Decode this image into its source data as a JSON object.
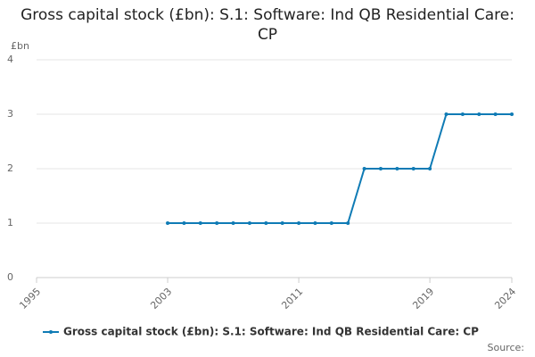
{
  "chart_data": {
    "type": "line",
    "title": "Gross capital stock (£bn): S.1: Software: Ind QB Residential Care: CP",
    "y_label": "£bn",
    "source_label": "Source:",
    "x": [
      2003,
      2004,
      2005,
      2006,
      2007,
      2008,
      2009,
      2010,
      2011,
      2012,
      2013,
      2014,
      2015,
      2016,
      2017,
      2018,
      2019,
      2020,
      2021,
      2022,
      2023,
      2024
    ],
    "series": [
      {
        "name": "Gross capital stock (£bn): S.1: Software: Ind QB Residential Care: CP",
        "color": "#0f7bb5",
        "values": [
          1,
          1,
          1,
          1,
          1,
          1,
          1,
          1,
          1,
          1,
          1,
          1,
          2,
          2,
          2,
          2,
          2,
          3,
          3,
          3,
          3,
          3
        ]
      }
    ],
    "xlim": [
      1995,
      2024
    ],
    "xticks": [
      1995,
      2003,
      2011,
      2019,
      2024
    ],
    "ylim": [
      0,
      4
    ],
    "yticks": [
      0,
      1,
      2,
      3,
      4
    ],
    "grid": true
  }
}
